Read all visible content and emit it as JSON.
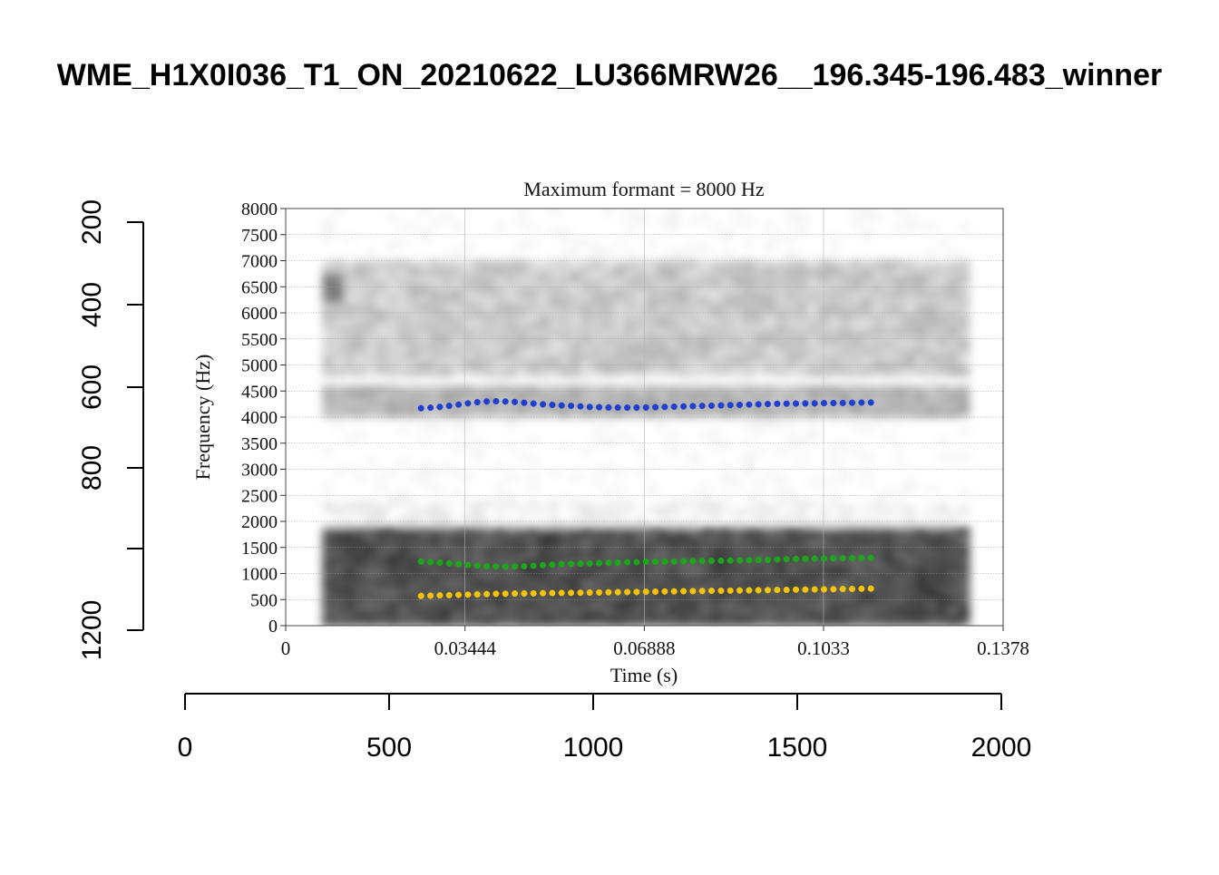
{
  "figure": {
    "title": "WME_H1X0I036_T1_ON_20210622_LU366MRW26__196.345-196.483_winner"
  },
  "outer_axes": {
    "left_ticks": [
      "200",
      "400",
      "600",
      "800",
      "",
      "1200"
    ],
    "bottom_ticks": [
      "0",
      "500",
      "1000",
      "1500",
      "2000"
    ]
  },
  "chart_data": {
    "type": "scatter",
    "title": "Maximum formant = 8000 Hz",
    "xlabel": "Time (s)",
    "ylabel": "Frequency (Hz)",
    "xlim": [
      0,
      0.1378
    ],
    "ylim": [
      0,
      8000
    ],
    "x_tick_labels": [
      "0",
      "0.03444",
      "0.06888",
      "0.1033",
      "0.1378"
    ],
    "y_tick_labels": [
      "0",
      "500",
      "1000",
      "1500",
      "2000",
      "2500",
      "3000",
      "3500",
      "4000",
      "4500",
      "5000",
      "5500",
      "6000",
      "6500",
      "7000",
      "7500",
      "8000"
    ],
    "grid": true,
    "background": "spectrogram (grayscale)",
    "spectrogram_time_range": [
      0.007,
      0.1313
    ],
    "series": [
      {
        "color": "#f5c400",
        "x_start": 0.026,
        "x_end": 0.1124,
        "values": [
          570,
          575,
          580,
          585,
          590,
          595,
          600,
          605,
          610,
          612,
          615,
          618,
          620,
          622,
          625,
          627,
          630,
          632,
          635,
          637,
          640,
          642,
          645,
          647,
          650,
          652,
          655,
          657,
          660,
          662,
          665,
          667,
          670,
          672,
          675,
          677,
          680,
          682,
          685,
          687,
          690,
          692,
          695,
          697,
          700,
          702,
          705,
          707,
          710
        ]
      },
      {
        "color": "#1aa81a",
        "x_start": 0.026,
        "x_end": 0.1124,
        "values": [
          1230,
          1220,
          1210,
          1195,
          1180,
          1165,
          1150,
          1140,
          1135,
          1130,
          1135,
          1140,
          1150,
          1160,
          1170,
          1180,
          1185,
          1190,
          1195,
          1200,
          1205,
          1210,
          1215,
          1220,
          1225,
          1228,
          1230,
          1232,
          1235,
          1238,
          1240,
          1242,
          1245,
          1248,
          1250,
          1255,
          1260,
          1265,
          1270,
          1275,
          1280,
          1282,
          1285,
          1287,
          1290,
          1292,
          1295,
          1297,
          1300
        ]
      },
      {
        "color": "#1f3fd0",
        "x_start": 0.026,
        "x_end": 0.1124,
        "values": [
          4170,
          4180,
          4195,
          4215,
          4240,
          4265,
          4285,
          4300,
          4305,
          4300,
          4290,
          4275,
          4260,
          4245,
          4235,
          4225,
          4215,
          4205,
          4195,
          4190,
          4185,
          4182,
          4180,
          4182,
          4185,
          4190,
          4195,
          4200,
          4205,
          4210,
          4215,
          4220,
          4225,
          4230,
          4235,
          4240,
          4245,
          4250,
          4255,
          4258,
          4260,
          4262,
          4265,
          4268,
          4270,
          4272,
          4275,
          4278,
          4280
        ]
      }
    ]
  }
}
